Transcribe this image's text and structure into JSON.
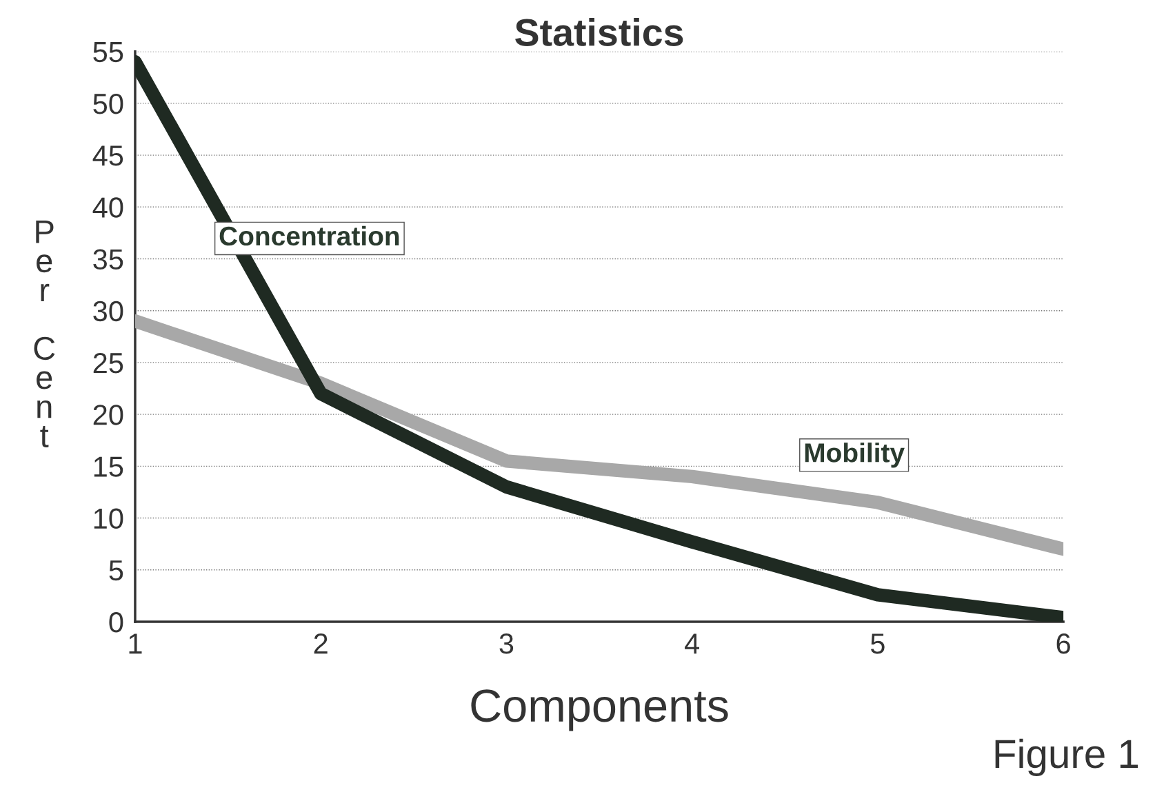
{
  "chart_data": {
    "type": "line",
    "title": "Statistics",
    "xlabel": "Components",
    "ylabel": "Per Cent",
    "x": [
      1,
      2,
      3,
      4,
      5,
      6
    ],
    "series": [
      {
        "name": "Concentration",
        "color": "#1f2a22",
        "values": [
          54,
          22,
          13,
          7.7,
          2.6,
          0.4
        ]
      },
      {
        "name": "Mobility",
        "color": "#a8a8a8",
        "values": [
          29,
          23,
          15.5,
          14,
          11.5,
          7
        ]
      }
    ],
    "xlim": [
      1,
      6
    ],
    "ylim": [
      0,
      55
    ],
    "xticks": [
      1,
      2,
      3,
      4,
      5,
      6
    ],
    "yticks": [
      0,
      5,
      10,
      15,
      20,
      25,
      30,
      35,
      40,
      45,
      50,
      55
    ],
    "grid": "y",
    "line_style": "solid",
    "marker": "none",
    "annotations": [
      "Figure 1"
    ]
  }
}
